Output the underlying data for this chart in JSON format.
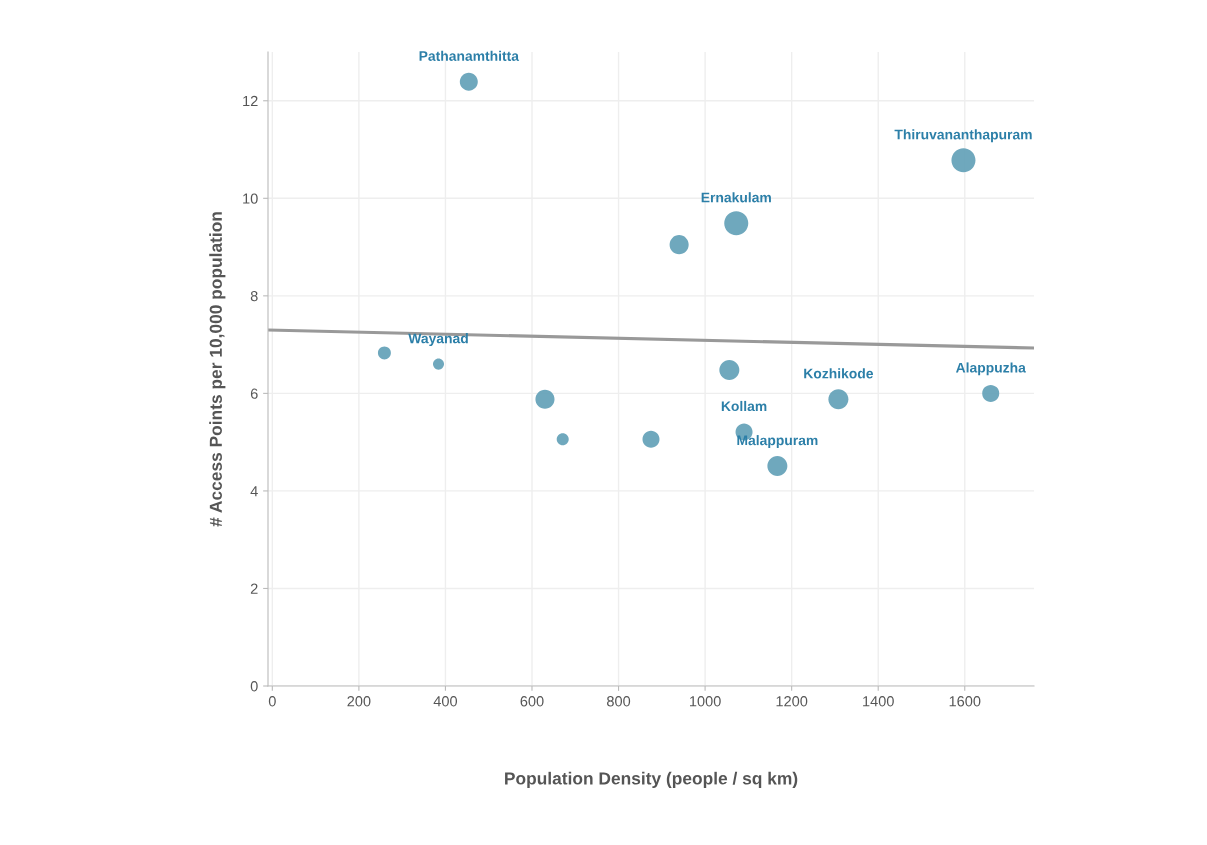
{
  "chart_data": {
    "type": "bubble",
    "xlabel": "Population Density (people / sq km)",
    "ylabel": "# Access Points per 10,000 population",
    "xlim": [
      -10,
      1760
    ],
    "xticks": [
      0,
      200,
      400,
      600,
      800,
      1000,
      1200,
      1400,
      1600
    ],
    "ylim": [
      0,
      13
    ],
    "yticks": [
      0,
      2,
      4,
      6,
      8,
      10,
      12
    ],
    "grid": true,
    "legend": false,
    "series": [
      {
        "color": "#5f9fb6",
        "x": [
          259,
          384,
          454,
          630,
          671,
          875,
          940,
          1056,
          1072,
          1090,
          1167,
          1308,
          1597,
          1660
        ],
        "values": [
          6.83,
          6.6,
          12.39,
          5.88,
          5.06,
          5.06,
          9.05,
          6.48,
          9.49,
          5.21,
          4.51,
          5.88,
          10.78,
          6.0
        ],
        "sizes": [
          0.29,
          0.21,
          0.56,
          0.63,
          0.25,
          0.5,
          0.63,
          0.69,
          1,
          0.5,
          0.69,
          0.69,
          1,
          0.5
        ]
      },
      {
        "type": "line",
        "color": "#999999",
        "x": [
          -10,
          1760
        ],
        "values": [
          7.3,
          6.93
        ]
      }
    ],
    "annotations": [
      {
        "text": "Pathanamthitta",
        "x": 454,
        "y": 12.39
      },
      {
        "text": "Thiruvananthapuram",
        "x": 1597,
        "y": 10.78
      },
      {
        "text": "Ernakulam",
        "x": 1072,
        "y": 9.49
      },
      {
        "text": "Wayanad",
        "x": 384,
        "y": 6.6
      },
      {
        "text": "Kozhikode",
        "x": 1308,
        "y": 5.88
      },
      {
        "text": "Alappuzha",
        "x": 1660,
        "y": 6.0
      },
      {
        "text": "Kollam",
        "x": 1090,
        "y": 5.21
      },
      {
        "text": "Malappuram",
        "x": 1167,
        "y": 4.51
      }
    ]
  }
}
